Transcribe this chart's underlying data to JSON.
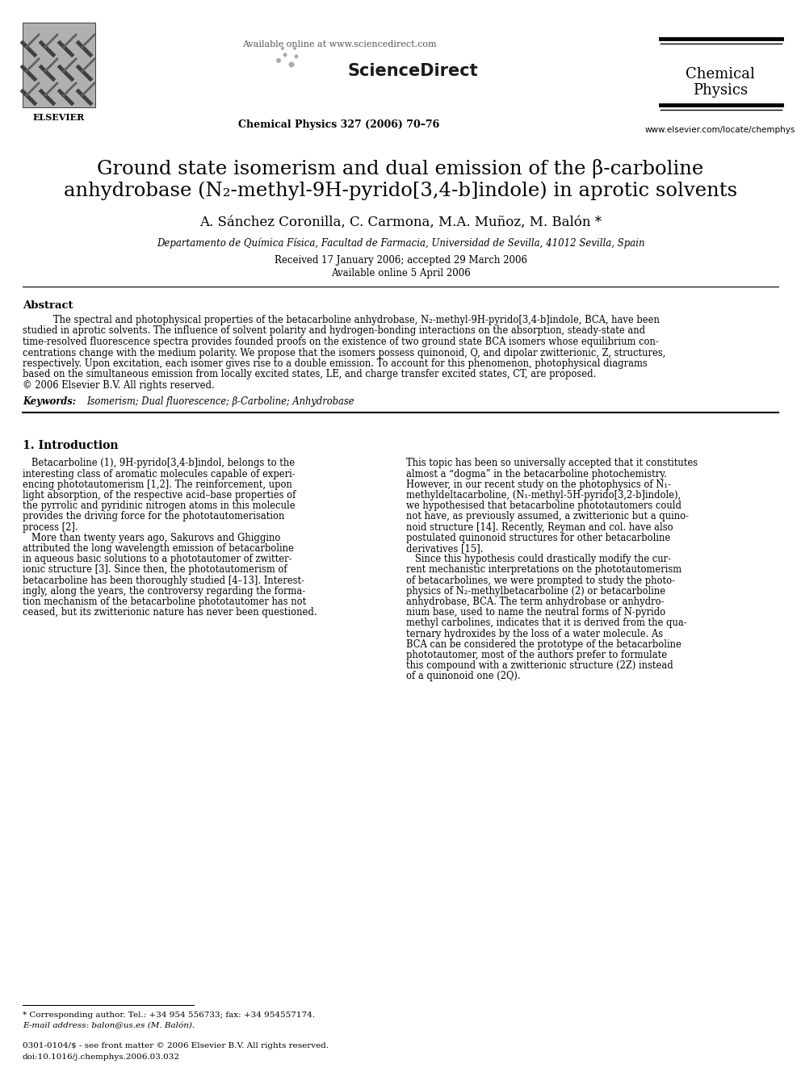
{
  "bg_color": "#ffffff",
  "available_online": "Available online at www.sciencedirect.com",
  "journal_info": "Chemical Physics 327 (2006) 70–76",
  "journal_name_line1": "Chemical",
  "journal_name_line2": "Physics",
  "website": "www.elsevier.com/locate/chemphys",
  "sciencedirect": "ScienceDirect",
  "elsevier_label": "ELSEVIER",
  "title_line1": "Ground state isomerism and dual emission of the β-carboline",
  "title_line2": "anhydrobase (N₂-methyl-9H-pyrido[3,4-b]indole) in aprotic solvents",
  "authors": "A. Sánchez Coronilla, C. Carmona, M.A. Muñoz, M. Balón *",
  "affiliation": "Departamento de Química Física, Facultad de Farmacia, Universidad de Sevilla, 41012 Sevilla, Spain",
  "received": "Received 17 January 2006; accepted 29 March 2006",
  "available_date": "Available online 5 April 2006",
  "abstract_label": "Abstract",
  "abstract_lines": [
    "The spectral and photophysical properties of the betacarboline anhydrobase, N₂-methyl-9H-pyrido[3,4-b]indole, BCA, have been",
    "studied in aprotic solvents. The influence of solvent polarity and hydrogen-bonding interactions on the absorption, steady-state and",
    "time-resolved fluorescence spectra provides founded proofs on the existence of two ground state BCA isomers whose equilibrium con-",
    "centrations change with the medium polarity. We propose that the isomers possess quinonoid, Q, and dipolar zwitterionic, Z, structures,",
    "respectively. Upon excitation, each isomer gives rise to a double emission. To account for this phenomenon, photophysical diagrams",
    "based on the simultaneous emission from locally excited states, LE, and charge transfer excited states, CT, are proposed.",
    "© 2006 Elsevier B.V. All rights reserved."
  ],
  "keywords_label": "Keywords:",
  "keywords_text": "Isomerism; Dual fluorescence; β-Carboline; Anhydrobase",
  "section1_title": "1. Introduction",
  "col1_lines": [
    "   Betacarboline (1), 9H-pyrido[3,4-b]indol, belongs to the",
    "interesting class of aromatic molecules capable of experi-",
    "encing phototautomerism [1,2]. The reinforcement, upon",
    "light absorption, of the respective acid–base properties of",
    "the pyrrolic and pyridinic nitrogen atoms in this molecule",
    "provides the driving force for the phototautomerisation",
    "process [2].",
    "   More than twenty years ago, Sakurovs and Ghiggino",
    "attributed the long wavelength emission of betacarboline",
    "in aqueous basic solutions to a phototautomer of zwitter-",
    "ionic structure [3]. Since then, the phototautomerism of",
    "betacarboline has been thoroughly studied [4–13]. Interest-",
    "ingly, along the years, the controversy regarding the forma-",
    "tion mechanism of the betacarboline phototautomer has not",
    "ceased, but its zwitterionic nature has never been questioned."
  ],
  "col2_lines": [
    "This topic has been so universally accepted that it constitutes",
    "almost a “dogma” in the betacarboline photochemistry.",
    "However, in our recent study on the photophysics of N₁-",
    "methyldeltacarboline, (N₁-methyl-5H-pyrido[3,2-b]indole),",
    "we hypothesised that betacarboline phototautomers could",
    "not have, as previously assumed, a zwitterionic but a quino-",
    "noid structure [14]. Recently, Reyman and col. have also",
    "postulated quinonoid structures for other betacarboline",
    "derivatives [15].",
    "   Since this hypothesis could drastically modify the cur-",
    "rent mechanistic interpretations on the phototautomerism",
    "of betacarbolines, we were prompted to study the photo-",
    "physics of N₂-methylbetacarboline (2) or betacarboline",
    "anhydrobase, BCA. The term anhydrobase or anhydro-",
    "nium base, used to name the neutral forms of N-pyrido",
    "methyl carbolines, indicates that it is derived from the qua-",
    "ternary hydroxides by the loss of a water molecule. As",
    "BCA can be considered the prototype of the betacarboline",
    "phototautomer, most of the authors prefer to formulate",
    "this compound with a zwitterionic structure (2Z) instead",
    "of a quinonoid one (2Q)."
  ],
  "footnote_star": "* Corresponding author. Tel.: +34 954 556733; fax: +34 954557174.",
  "footnote_email": "E-mail address: balon@us.es (M. Balón).",
  "footnote_issn": "0301-0104/$ - see front matter © 2006 Elsevier B.V. All rights reserved.",
  "footnote_doi": "doi:10.1016/j.chemphys.2006.03.032"
}
